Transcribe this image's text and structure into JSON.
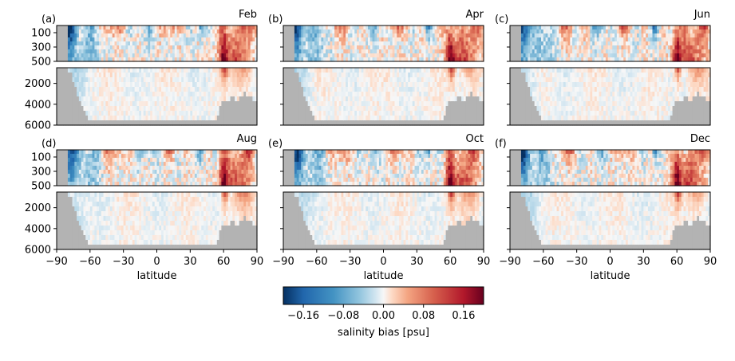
{
  "chart_data": {
    "type": "heatmap",
    "colormap": "RdBu_r",
    "xlabel": "latitude",
    "x_ticks": [
      "−90",
      "−60",
      "−30",
      "0",
      "30",
      "60",
      "90"
    ],
    "xlim": [
      -90,
      90
    ],
    "upper_y_ticks": [
      "100",
      "300",
      "500"
    ],
    "upper_ylim": [
      500,
      0
    ],
    "lower_y_ticks": [
      "2000",
      "4000",
      "6000"
    ],
    "lower_ylim": [
      6000,
      500
    ],
    "panels": [
      {
        "letter": "(a)",
        "month": "Feb"
      },
      {
        "letter": "(b)",
        "month": "Apr"
      },
      {
        "letter": "(c)",
        "month": "Jun"
      },
      {
        "letter": "(d)",
        "month": "Aug"
      },
      {
        "letter": "(e)",
        "month": "Oct"
      },
      {
        "letter": "(f)",
        "month": "Dec"
      }
    ],
    "colorbar": {
      "label": "salinity bias [psu]",
      "ticks": [
        "−0.16",
        "−0.08",
        "0.00",
        "0.08",
        "0.16"
      ],
      "range": [
        -0.2,
        0.2
      ]
    },
    "land_color": "#b3b3b3"
  }
}
